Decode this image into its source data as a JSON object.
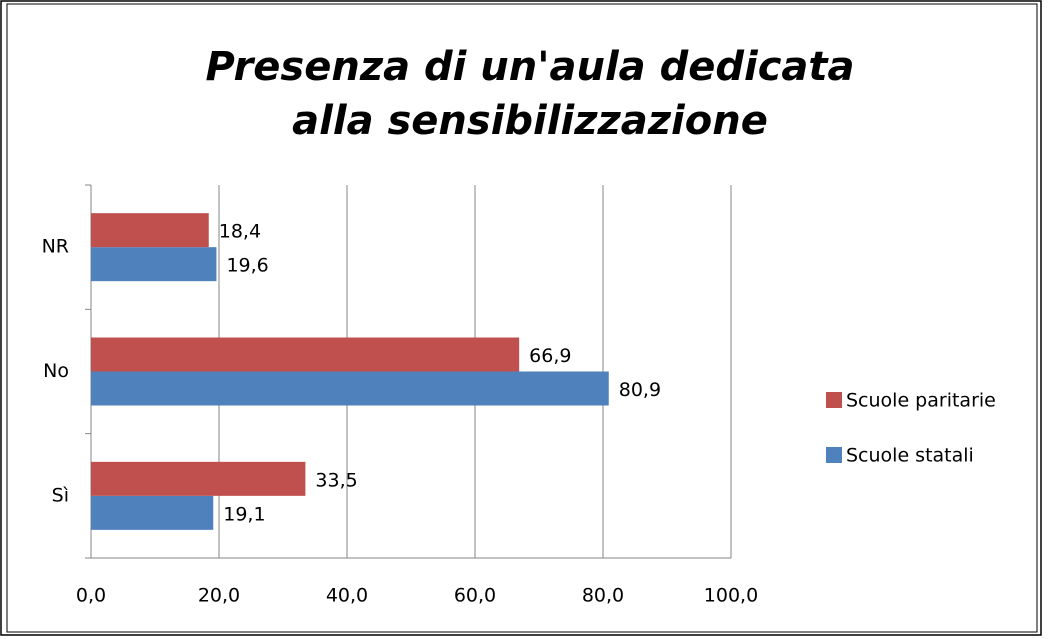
{
  "chart_data": {
    "type": "hbar",
    "title": "Presenza di un'aula dedicata alla sensibilizzazione",
    "categories": [
      "Sì",
      "No",
      "NR"
    ],
    "series": [
      {
        "name": "Scuole statali",
        "color": "#4f81bd",
        "values": [
          19.1,
          80.9,
          19.6
        ],
        "value_labels": [
          "19,1",
          "80,9",
          "19,6"
        ]
      },
      {
        "name": "Scuole paritarie",
        "color": "#c0504d",
        "values": [
          33.5,
          66.9,
          18.4
        ],
        "value_labels": [
          "33,5",
          "66,9",
          "18,4"
        ]
      }
    ],
    "xlim": [
      0,
      100
    ],
    "xticks": [
      {
        "value": 0,
        "label": "0,0"
      },
      {
        "value": 20,
        "label": "20,0"
      },
      {
        "value": 40,
        "label": "40,0"
      },
      {
        "value": 60,
        "label": "60,0"
      },
      {
        "value": 80,
        "label": "80,0"
      },
      {
        "value": 100,
        "label": "100,0"
      }
    ],
    "grid": true,
    "legend": "right"
  }
}
